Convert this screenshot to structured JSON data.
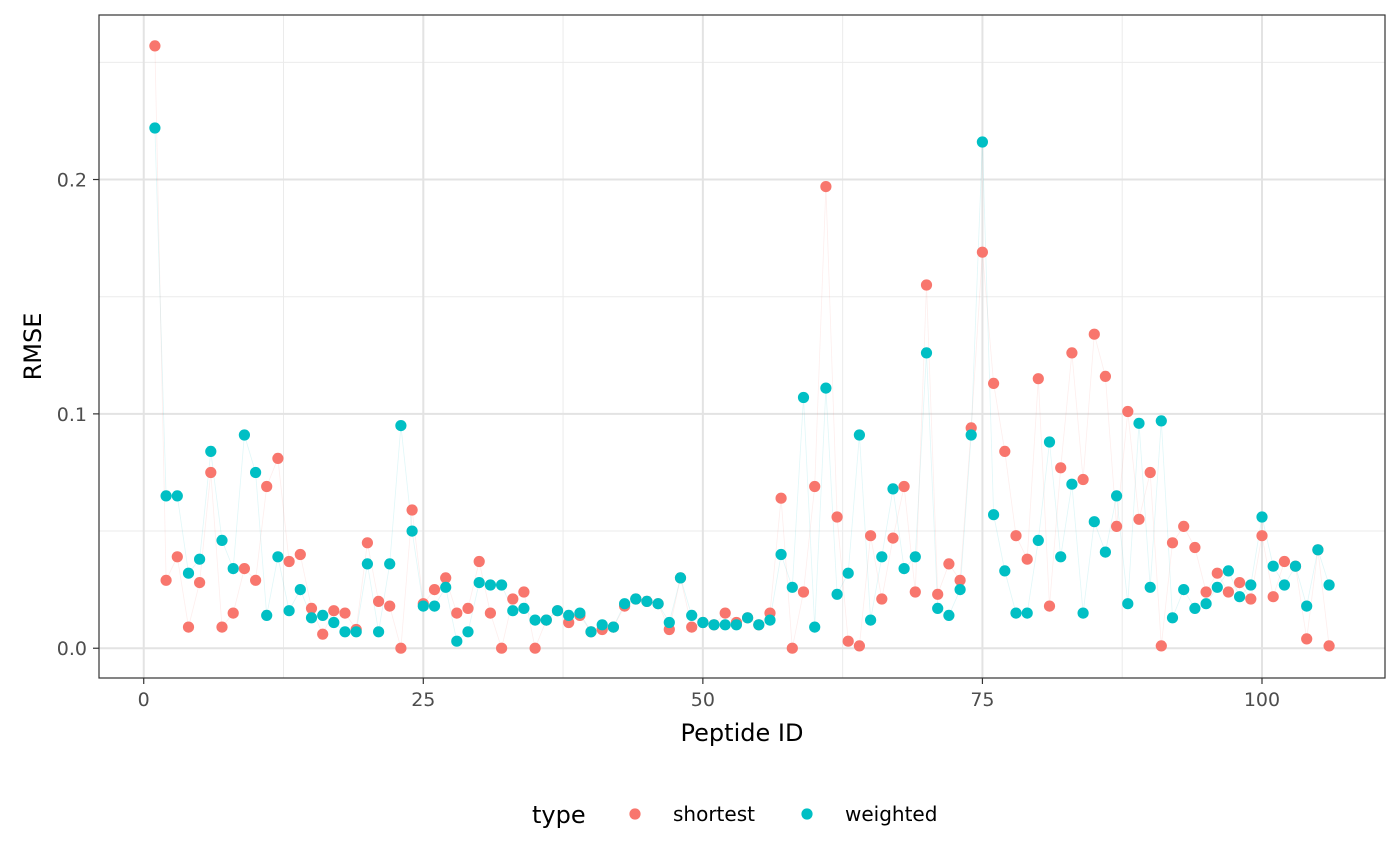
{
  "chart_data": {
    "type": "scatter",
    "title": "",
    "xlabel": "Peptide ID",
    "ylabel": "RMSE",
    "xlim": [
      -4,
      111
    ],
    "ylim": [
      -0.0127,
      0.2702
    ],
    "x_ticks": [
      0,
      25,
      50,
      75,
      100
    ],
    "x_tick_labels": [
      "0",
      "25",
      "50",
      "75",
      "100"
    ],
    "y_ticks": [
      0.0,
      0.1,
      0.2
    ],
    "y_tick_labels": [
      "0.0",
      "0.1",
      "0.2"
    ],
    "grid": true,
    "legend": {
      "title": "type",
      "position": "bottom"
    },
    "series": [
      {
        "name": "shortest",
        "color": "#F8766D",
        "x": [
          1,
          2,
          3,
          4,
          5,
          6,
          7,
          8,
          9,
          10,
          11,
          12,
          13,
          14,
          15,
          16,
          17,
          18,
          19,
          20,
          21,
          22,
          23,
          24,
          25,
          26,
          27,
          28,
          29,
          30,
          31,
          32,
          33,
          34,
          35,
          36,
          37,
          38,
          39,
          40,
          41,
          42,
          43,
          44,
          45,
          46,
          47,
          48,
          49,
          50,
          51,
          52,
          53,
          54,
          55,
          56,
          57,
          58,
          59,
          60,
          61,
          62,
          63,
          64,
          65,
          66,
          67,
          68,
          69,
          70,
          71,
          72,
          73,
          74,
          75,
          76,
          77,
          78,
          79,
          80,
          81,
          82,
          83,
          84,
          85,
          86,
          87,
          88,
          89,
          90,
          91,
          92,
          93,
          94,
          95,
          96,
          97,
          98,
          99,
          100,
          101,
          102,
          103,
          104,
          105,
          106
        ],
        "values": [
          0.257,
          0.029,
          0.039,
          0.009,
          0.028,
          0.075,
          0.009,
          0.015,
          0.034,
          0.029,
          0.069,
          0.081,
          0.037,
          0.04,
          0.017,
          0.006,
          0.016,
          0.015,
          0.008,
          0.045,
          0.02,
          0.018,
          0.0,
          0.059,
          0.019,
          0.025,
          0.03,
          0.015,
          0.017,
          0.037,
          0.015,
          0.0,
          0.021,
          0.024,
          0.0,
          0.012,
          0.016,
          0.011,
          0.014,
          0.007,
          0.008,
          0.009,
          0.018,
          0.021,
          0.02,
          0.019,
          0.008,
          0.03,
          0.009,
          0.011,
          0.01,
          0.015,
          0.011,
          0.013,
          0.01,
          0.015,
          0.064,
          0.0,
          0.024,
          0.069,
          0.197,
          0.056,
          0.003,
          0.001,
          0.048,
          0.021,
          0.047,
          0.069,
          0.024,
          0.155,
          0.023,
          0.036,
          0.029,
          0.094,
          0.169,
          0.113,
          0.084,
          0.048,
          0.038,
          0.115,
          0.018,
          0.077,
          0.126,
          0.072,
          0.134,
          0.116,
          0.052,
          0.101,
          0.055,
          0.075,
          0.001,
          0.045,
          0.052,
          0.043,
          0.024,
          0.032,
          0.024,
          0.028,
          0.021,
          0.048,
          0.022,
          0.037,
          0.035,
          0.004,
          0.042,
          0.001
        ]
      },
      {
        "name": "weighted",
        "color": "#00BFC4",
        "x": [
          1,
          2,
          3,
          4,
          5,
          6,
          7,
          8,
          9,
          10,
          11,
          12,
          13,
          14,
          15,
          16,
          17,
          18,
          19,
          20,
          21,
          22,
          23,
          24,
          25,
          26,
          27,
          28,
          29,
          30,
          31,
          32,
          33,
          34,
          35,
          36,
          37,
          38,
          39,
          40,
          41,
          42,
          43,
          44,
          45,
          46,
          47,
          48,
          49,
          50,
          51,
          52,
          53,
          54,
          55,
          56,
          57,
          58,
          59,
          60,
          61,
          62,
          63,
          64,
          65,
          66,
          67,
          68,
          69,
          70,
          71,
          72,
          73,
          74,
          75,
          76,
          77,
          78,
          79,
          80,
          81,
          82,
          83,
          84,
          85,
          86,
          87,
          88,
          89,
          90,
          91,
          92,
          93,
          94,
          95,
          96,
          97,
          98,
          99,
          100,
          101,
          102,
          103,
          104,
          105,
          106
        ],
        "values": [
          0.222,
          0.065,
          0.065,
          0.032,
          0.038,
          0.084,
          0.046,
          0.034,
          0.091,
          0.075,
          0.014,
          0.039,
          0.016,
          0.025,
          0.013,
          0.014,
          0.011,
          0.007,
          0.007,
          0.036,
          0.007,
          0.036,
          0.095,
          0.05,
          0.018,
          0.018,
          0.026,
          0.003,
          0.007,
          0.028,
          0.027,
          0.027,
          0.016,
          0.017,
          0.012,
          0.012,
          0.016,
          0.014,
          0.015,
          0.007,
          0.01,
          0.009,
          0.019,
          0.021,
          0.02,
          0.019,
          0.011,
          0.03,
          0.014,
          0.011,
          0.01,
          0.01,
          0.01,
          0.013,
          0.01,
          0.012,
          0.04,
          0.026,
          0.107,
          0.009,
          0.111,
          0.023,
          0.032,
          0.091,
          0.012,
          0.039,
          0.068,
          0.034,
          0.039,
          0.126,
          0.017,
          0.014,
          0.025,
          0.091,
          0.216,
          0.057,
          0.033,
          0.015,
          0.015,
          0.046,
          0.088,
          0.039,
          0.07,
          0.015,
          0.054,
          0.041,
          0.065,
          0.019,
          0.096,
          0.026,
          0.097,
          0.013,
          0.025,
          0.017,
          0.019,
          0.026,
          0.033,
          0.022,
          0.027,
          0.056,
          0.035,
          0.027,
          0.035,
          0.018,
          0.042,
          0.027
        ]
      }
    ]
  }
}
